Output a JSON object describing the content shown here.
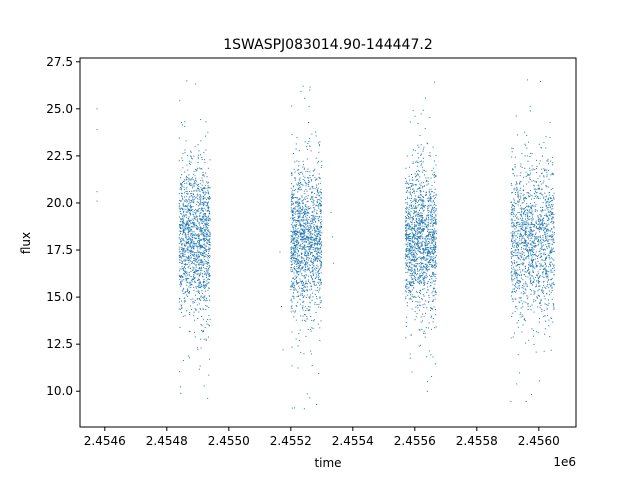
{
  "chart_data": {
    "type": "scatter",
    "title": "1SWASPJ083014.90-144447.2",
    "xlabel": "time",
    "ylabel": "flux",
    "x_offset_label": "1e6",
    "xlim": [
      2.45452,
      2.45612
    ],
    "ylim": [
      8.1,
      27.7
    ],
    "x_ticks": [
      2.4546,
      2.4548,
      2.455,
      2.4552,
      2.4554,
      2.4556,
      2.4558,
      2.456
    ],
    "x_tick_labels": [
      "2.4546",
      "2.4548",
      "2.4550",
      "2.4552",
      "2.4554",
      "2.4556",
      "2.4558",
      "2.4560"
    ],
    "y_ticks": [
      10.0,
      12.5,
      15.0,
      17.5,
      20.0,
      22.5,
      25.0,
      27.5
    ],
    "y_tick_labels": [
      "10.0",
      "12.5",
      "15.0",
      "17.5",
      "20.0",
      "22.5",
      "25.0",
      "27.5"
    ],
    "grid": false,
    "marker_color": "#1f77b4",
    "clusters": [
      {
        "x_start": 2.45484,
        "x_end": 2.45494,
        "y_center": 18.0,
        "y_spread": 2.0,
        "y_min": 9.6,
        "y_max": 26.7
      },
      {
        "x_start": 2.4552,
        "x_end": 2.4553,
        "y_center": 18.0,
        "y_spread": 2.0,
        "y_min": 9.0,
        "y_max": 26.6
      },
      {
        "x_start": 2.45557,
        "x_end": 2.45567,
        "y_center": 18.0,
        "y_spread": 2.0,
        "y_min": 9.8,
        "y_max": 26.6
      },
      {
        "x_start": 2.45591,
        "x_end": 2.45605,
        "y_center": 18.0,
        "y_spread": 2.0,
        "y_min": 8.9,
        "y_max": 26.8
      }
    ],
    "isolated_points": [
      {
        "x": 2.454575,
        "y": 25.0
      },
      {
        "x": 2.454575,
        "y": 23.9
      },
      {
        "x": 2.454575,
        "y": 20.6
      },
      {
        "x": 2.454575,
        "y": 20.1
      },
      {
        "x": 2.455165,
        "y": 17.4
      },
      {
        "x": 2.45517,
        "y": 14.5
      },
      {
        "x": 2.455175,
        "y": 12.2
      },
      {
        "x": 2.45533,
        "y": 19.5
      },
      {
        "x": 2.455335,
        "y": 18.2
      },
      {
        "x": 2.455338,
        "y": 16.8
      }
    ]
  }
}
